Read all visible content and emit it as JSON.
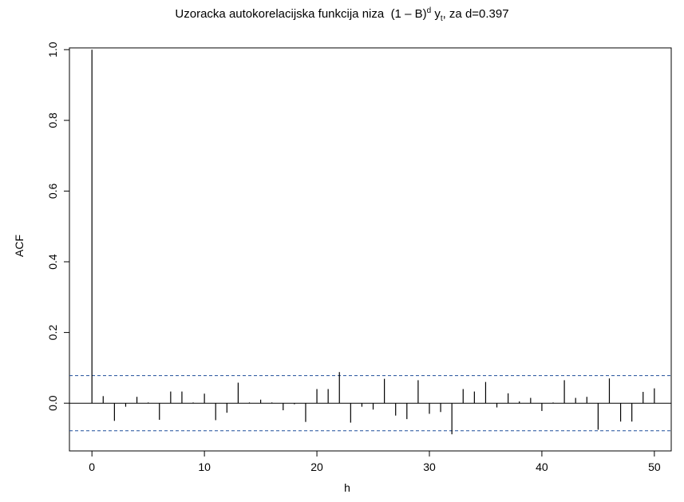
{
  "chart_data": {
    "type": "bar",
    "title_main": "Uzoracka autokorelacijska funkcija niza",
    "title_formula_base": "(1 – B)",
    "title_formula_exp": "d",
    "title_formula_y": "y",
    "title_formula_sub": "t",
    "title_tail": ",  za d=0.397",
    "xlabel": "h",
    "ylabel": "ACF",
    "xlim": [
      -2,
      51.5
    ],
    "ylim": [
      -0.135,
      1.005
    ],
    "xticks": [
      0,
      10,
      20,
      30,
      40,
      50
    ],
    "yticks": [
      0.0,
      0.2,
      0.4,
      0.6,
      0.8,
      1.0
    ],
    "ytick_labels": [
      "0.0",
      "0.2",
      "0.4",
      "0.6",
      "0.8",
      "1.0"
    ],
    "confidence_band": 0.078,
    "confidence_band_color": "#1f4e9a",
    "lags": [
      0,
      1,
      2,
      3,
      4,
      5,
      6,
      7,
      8,
      9,
      10,
      11,
      12,
      13,
      14,
      15,
      16,
      17,
      18,
      19,
      20,
      21,
      22,
      23,
      24,
      25,
      26,
      27,
      28,
      29,
      30,
      31,
      32,
      33,
      34,
      35,
      36,
      37,
      38,
      39,
      40,
      41,
      42,
      43,
      44,
      45,
      46,
      47,
      48,
      49,
      50
    ],
    "values": [
      1.0,
      0.02,
      -0.05,
      -0.01,
      0.018,
      0.002,
      -0.047,
      0.033,
      0.033,
      0.002,
      0.027,
      -0.048,
      -0.027,
      0.058,
      0.002,
      0.01,
      0.002,
      -0.02,
      -0.003,
      -0.053,
      0.04,
      0.04,
      0.088,
      -0.055,
      -0.01,
      -0.018,
      0.069,
      -0.035,
      -0.045,
      0.065,
      -0.03,
      -0.025,
      -0.088,
      0.04,
      0.033,
      0.06,
      -0.012,
      0.028,
      0.005,
      0.015,
      -0.022,
      0.002,
      0.065,
      0.015,
      0.018,
      -0.075,
      0.07,
      -0.052,
      -0.052,
      0.032,
      0.042
    ]
  }
}
